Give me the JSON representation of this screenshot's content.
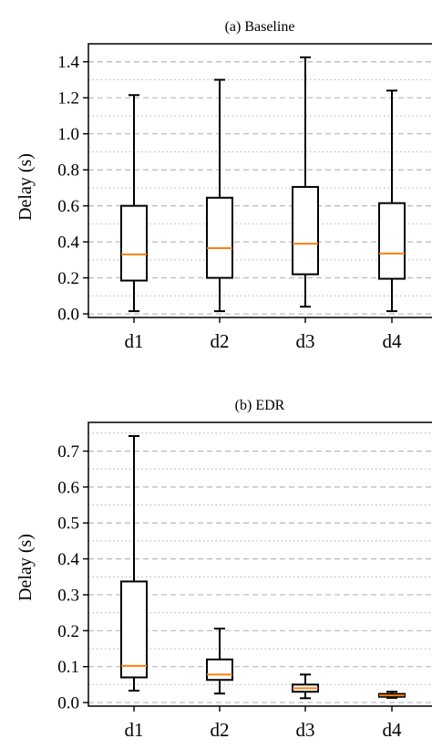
{
  "chart_data": [
    {
      "type": "box",
      "title": "(a) Baseline",
      "xlabel": "",
      "ylabel": "Delay (s)",
      "categories": [
        "d1",
        "d2",
        "d3",
        "d4"
      ],
      "ylim": [
        -0.02,
        1.5
      ],
      "yticks": [
        0.0,
        0.2,
        0.4,
        0.6,
        0.8,
        1.0,
        1.2,
        1.4
      ],
      "ytick_labels": [
        "0.0",
        "0.2",
        "0.4",
        "0.6",
        "0.8",
        "1.0",
        "1.2",
        "1.4"
      ],
      "grid": "horizontal dashed (major) and dotted (minor)",
      "boxes": [
        {
          "min": 0.015,
          "q1": 0.185,
          "median": 0.33,
          "q3": 0.6,
          "max": 1.215
        },
        {
          "min": 0.015,
          "q1": 0.2,
          "median": 0.365,
          "q3": 0.645,
          "max": 1.3
        },
        {
          "min": 0.04,
          "q1": 0.22,
          "median": 0.39,
          "q3": 0.705,
          "max": 1.425
        },
        {
          "min": 0.015,
          "q1": 0.195,
          "median": 0.335,
          "q3": 0.615,
          "max": 1.24
        }
      ]
    },
    {
      "type": "box",
      "title": "(b) EDR",
      "xlabel": "",
      "ylabel": "Delay (s)",
      "categories": [
        "d1",
        "d2",
        "d3",
        "d4"
      ],
      "ylim": [
        -0.01,
        0.78
      ],
      "yticks": [
        0.0,
        0.1,
        0.2,
        0.3,
        0.4,
        0.5,
        0.6,
        0.7
      ],
      "ytick_labels": [
        "0.0",
        "0.1",
        "0.2",
        "0.3",
        "0.4",
        "0.5",
        "0.6",
        "0.7"
      ],
      "grid": "horizontal dashed (major) and dotted (minor)",
      "boxes": [
        {
          "min": 0.033,
          "q1": 0.07,
          "median": 0.102,
          "q3": 0.337,
          "max": 0.742
        },
        {
          "min": 0.025,
          "q1": 0.063,
          "median": 0.078,
          "q3": 0.12,
          "max": 0.206
        },
        {
          "min": 0.012,
          "q1": 0.03,
          "median": 0.04,
          "q3": 0.05,
          "max": 0.078
        },
        {
          "min": 0.013,
          "q1": 0.016,
          "median": 0.02,
          "q3": 0.024,
          "max": 0.03
        }
      ]
    }
  ],
  "style": {
    "box_color": "#000000",
    "median_color": "#ff7f0e",
    "grid_color": "#b8b8b8"
  }
}
